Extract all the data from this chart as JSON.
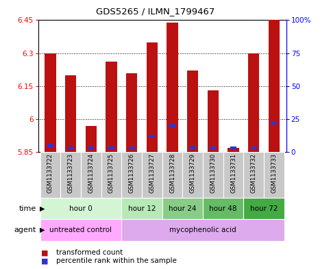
{
  "title": "GDS5265 / ILMN_1799467",
  "samples": [
    "GSM1133722",
    "GSM1133723",
    "GSM1133724",
    "GSM1133725",
    "GSM1133726",
    "GSM1133727",
    "GSM1133728",
    "GSM1133729",
    "GSM1133730",
    "GSM1133731",
    "GSM1133732",
    "GSM1133733"
  ],
  "bar_values": [
    6.3,
    6.2,
    5.97,
    6.26,
    6.21,
    6.35,
    6.44,
    6.22,
    6.13,
    5.87,
    6.3,
    6.45
  ],
  "blue_percentiles": [
    5,
    3,
    3,
    3,
    3,
    12,
    20,
    3,
    3,
    3,
    3,
    22
  ],
  "ymin": 5.85,
  "ymax": 6.45,
  "yticks": [
    5.85,
    6.0,
    6.15,
    6.3,
    6.45
  ],
  "ytick_labels": [
    "5.85",
    "6",
    "6.15",
    "6.3",
    "6.45"
  ],
  "right_yticks": [
    0,
    25,
    50,
    75,
    100
  ],
  "right_ytick_labels": [
    "0",
    "25",
    "50",
    "75",
    "100%"
  ],
  "bar_color": "#bb1111",
  "blue_color": "#3333cc",
  "time_groups": [
    {
      "label": "hour 0",
      "start": 0,
      "end": 4,
      "color": "#d4f5d4"
    },
    {
      "label": "hour 12",
      "start": 4,
      "end": 6,
      "color": "#b8e8b8"
    },
    {
      "label": "hour 24",
      "start": 6,
      "end": 8,
      "color": "#88cc88"
    },
    {
      "label": "hour 48",
      "start": 8,
      "end": 10,
      "color": "#66bb66"
    },
    {
      "label": "hour 72",
      "start": 10,
      "end": 12,
      "color": "#44aa44"
    }
  ],
  "agent_groups": [
    {
      "label": "untreated control",
      "start": 0,
      "end": 4,
      "color": "#ffaaff"
    },
    {
      "label": "mycophenolic acid",
      "start": 4,
      "end": 12,
      "color": "#ddaaee"
    }
  ],
  "legend_items": [
    {
      "label": "transformed count",
      "color": "#bb1111"
    },
    {
      "label": "percentile rank within the sample",
      "color": "#3333cc"
    }
  ],
  "sample_bg_color": "#c8c8c8",
  "figure_bg": "#ffffff"
}
